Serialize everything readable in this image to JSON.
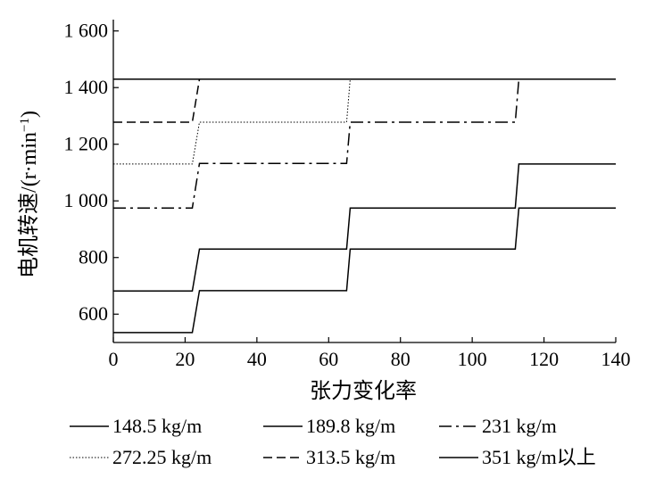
{
  "chart_data": {
    "type": "line",
    "title": "",
    "xlabel": "张力变化率",
    "ylabel": "电机转速/(r·min",
    "ylabel_sup": "−1",
    "ylabel_close": ")",
    "xlim": [
      0,
      140
    ],
    "ylim": [
      500,
      1640
    ],
    "x_ticks": [
      0,
      20,
      40,
      60,
      80,
      100,
      120,
      140
    ],
    "x_tick_labels": [
      "0",
      "20",
      "40",
      "60",
      "80",
      "100",
      "120",
      "140"
    ],
    "y_ticks": [
      600,
      800,
      1000,
      1200,
      1400,
      1600
    ],
    "y_tick_labels": [
      "600",
      "800",
      "1 000",
      "1 200",
      "1 400",
      "1 600"
    ],
    "grid": false,
    "legend_position": "bottom",
    "series": [
      {
        "name": "148.5 kg/m",
        "style": "solid",
        "x": [
          0,
          22,
          24,
          65,
          66,
          112,
          113,
          140
        ],
        "y": [
          535,
          535,
          683,
          683,
          830,
          830,
          975,
          975
        ]
      },
      {
        "name": "189.8 kg/m",
        "style": "solid",
        "x": [
          0,
          22,
          24,
          65,
          66,
          112,
          113,
          140
        ],
        "y": [
          682,
          682,
          830,
          830,
          975,
          975,
          1130,
          1130
        ]
      },
      {
        "name": "231 kg/m",
        "style": "dashdot",
        "x": [
          0,
          22,
          24,
          65,
          66,
          112,
          113,
          140
        ],
        "y": [
          975,
          975,
          1132,
          1132,
          1278,
          1278,
          1430,
          1430
        ]
      },
      {
        "name": "272.25 kg/m",
        "style": "dotted",
        "x": [
          0,
          22,
          24,
          65,
          66,
          140
        ],
        "y": [
          1130,
          1130,
          1278,
          1278,
          1430,
          1430
        ]
      },
      {
        "name": "313.5 kg/m",
        "style": "dashed",
        "x": [
          0,
          22,
          24,
          140
        ],
        "y": [
          1278,
          1278,
          1430,
          1430
        ]
      },
      {
        "name": "351 kg/m以上",
        "style": "solid",
        "x": [
          0,
          140
        ],
        "y": [
          1430,
          1430
        ]
      }
    ]
  }
}
